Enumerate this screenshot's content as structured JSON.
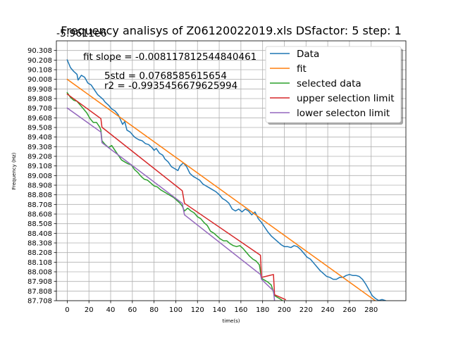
{
  "chart_data": {
    "type": "line",
    "title": "Frequency analisys of Z06120022019.xls DSfactor: 5 step: 1",
    "offset_text": "-5.9611e6",
    "xlabel": "time(s)",
    "ylabel": "Frequency (Hz)",
    "xlim": [
      -10,
      312
    ],
    "ylim": [
      87.708,
      90.408
    ],
    "xticks": [
      "0",
      "20",
      "40",
      "60",
      "80",
      "100",
      "120",
      "140",
      "160",
      "180",
      "200",
      "220",
      "240",
      "260",
      "280"
    ],
    "yticks": [
      "87.708",
      "87.808",
      "87.908",
      "88.008",
      "88.108",
      "88.208",
      "88.308",
      "88.408",
      "88.508",
      "88.608",
      "88.708",
      "88.808",
      "88.908",
      "89.008",
      "89.108",
      "89.208",
      "89.308",
      "89.408",
      "89.508",
      "89.608",
      "89.708",
      "89.808",
      "89.908",
      "90.008",
      "90.108",
      "90.208",
      "90.308"
    ],
    "grid": true,
    "legend_position": "upper right",
    "annotations": [
      "fit slope = -0.008117812544840461",
      "5std = 0.0768585615654",
      "r2 = -0.9935456679625994"
    ],
    "series": [
      {
        "name": "Data",
        "color": "#1f77b4",
        "points": [
          [
            0,
            90.21
          ],
          [
            3,
            90.13
          ],
          [
            6,
            90.09
          ],
          [
            9,
            90.06
          ],
          [
            10,
            90.0
          ],
          [
            13,
            90.05
          ],
          [
            16,
            90.03
          ],
          [
            19,
            89.97
          ],
          [
            22,
            89.95
          ],
          [
            25,
            89.9
          ],
          [
            28,
            89.85
          ],
          [
            31,
            89.82
          ],
          [
            33,
            89.8
          ],
          [
            35,
            89.77
          ],
          [
            38,
            89.74
          ],
          [
            41,
            89.7
          ],
          [
            44,
            89.68
          ],
          [
            47,
            89.64
          ],
          [
            49,
            89.59
          ],
          [
            51,
            89.54
          ],
          [
            53,
            89.57
          ],
          [
            55,
            89.48
          ],
          [
            58,
            89.46
          ],
          [
            61,
            89.42
          ],
          [
            63,
            89.4
          ],
          [
            66,
            89.38
          ],
          [
            69,
            89.37
          ],
          [
            72,
            89.34
          ],
          [
            75,
            89.33
          ],
          [
            78,
            89.3
          ],
          [
            80,
            89.27
          ],
          [
            82,
            89.29
          ],
          [
            85,
            89.24
          ],
          [
            88,
            89.22
          ],
          [
            90,
            89.18
          ],
          [
            93,
            89.15
          ],
          [
            96,
            89.1
          ],
          [
            99,
            89.08
          ],
          [
            102,
            89.06
          ],
          [
            104,
            89.11
          ],
          [
            107,
            89.14
          ],
          [
            110,
            89.1
          ],
          [
            113,
            89.03
          ],
          [
            116,
            89.0
          ],
          [
            119,
            88.98
          ],
          [
            122,
            88.96
          ],
          [
            125,
            88.92
          ],
          [
            128,
            88.9
          ],
          [
            131,
            88.88
          ],
          [
            134,
            88.86
          ],
          [
            137,
            88.84
          ],
          [
            140,
            88.81
          ],
          [
            143,
            88.77
          ],
          [
            146,
            88.75
          ],
          [
            149,
            88.72
          ],
          [
            152,
            88.66
          ],
          [
            155,
            88.64
          ],
          [
            158,
            88.66
          ],
          [
            161,
            88.63
          ],
          [
            164,
            88.66
          ],
          [
            167,
            88.64
          ],
          [
            170,
            88.6
          ],
          [
            173,
            88.63
          ],
          [
            176,
            88.56
          ],
          [
            179,
            88.52
          ],
          [
            182,
            88.47
          ],
          [
            185,
            88.42
          ],
          [
            188,
            88.38
          ],
          [
            191,
            88.35
          ],
          [
            194,
            88.32
          ],
          [
            197,
            88.29
          ],
          [
            200,
            88.27
          ],
          [
            203,
            88.27
          ],
          [
            206,
            88.26
          ],
          [
            209,
            88.28
          ],
          [
            212,
            88.27
          ],
          [
            215,
            88.24
          ],
          [
            218,
            88.2
          ],
          [
            221,
            88.16
          ],
          [
            224,
            88.14
          ],
          [
            227,
            88.1
          ],
          [
            230,
            88.06
          ],
          [
            233,
            88.02
          ],
          [
            236,
            87.99
          ],
          [
            239,
            87.96
          ],
          [
            242,
            87.95
          ],
          [
            245,
            87.93
          ],
          [
            248,
            87.93
          ],
          [
            251,
            87.95
          ],
          [
            254,
            87.95
          ],
          [
            257,
            87.97
          ],
          [
            260,
            87.98
          ],
          [
            263,
            87.97
          ],
          [
            266,
            87.97
          ],
          [
            269,
            87.96
          ],
          [
            272,
            87.93
          ],
          [
            275,
            87.88
          ],
          [
            278,
            87.82
          ],
          [
            281,
            87.76
          ],
          [
            284,
            87.73
          ],
          [
            287,
            87.71
          ],
          [
            290,
            87.72
          ],
          [
            293,
            87.71
          ]
        ]
      },
      {
        "name": "fit",
        "color": "#ff7f0e",
        "points": [
          [
            0,
            90.008
          ],
          [
            285,
            87.698
          ]
        ]
      },
      {
        "name": "selected data",
        "color": "#2ca02c",
        "points": [
          [
            0,
            89.87
          ],
          [
            3,
            89.82
          ],
          [
            6,
            89.79
          ],
          [
            9,
            89.78
          ],
          [
            12,
            89.74
          ],
          [
            15,
            89.7
          ],
          [
            18,
            89.66
          ],
          [
            21,
            89.6
          ],
          [
            24,
            89.56
          ],
          [
            27,
            89.56
          ],
          [
            30,
            89.51
          ],
          [
            31,
            89.48
          ],
          [
            32,
            89.37
          ],
          [
            35,
            89.33
          ],
          [
            38,
            89.3
          ],
          [
            41,
            89.32
          ],
          [
            44,
            89.27
          ],
          [
            47,
            89.22
          ],
          [
            50,
            89.17
          ],
          [
            53,
            89.15
          ],
          [
            56,
            89.13
          ],
          [
            59,
            89.12
          ],
          [
            62,
            89.07
          ],
          [
            65,
            89.04
          ],
          [
            68,
            89.0
          ],
          [
            71,
            88.97
          ],
          [
            74,
            88.96
          ],
          [
            77,
            88.93
          ],
          [
            80,
            88.9
          ],
          [
            83,
            88.89
          ],
          [
            86,
            88.86
          ],
          [
            89,
            88.84
          ],
          [
            92,
            88.82
          ],
          [
            95,
            88.8
          ],
          [
            98,
            88.78
          ],
          [
            101,
            88.75
          ],
          [
            104,
            88.72
          ],
          [
            106,
            88.69
          ],
          [
            108,
            88.64
          ],
          [
            111,
            88.67
          ],
          [
            114,
            88.64
          ],
          [
            117,
            88.62
          ],
          [
            120,
            88.58
          ],
          [
            123,
            88.56
          ],
          [
            126,
            88.52
          ],
          [
            129,
            88.49
          ],
          [
            132,
            88.43
          ],
          [
            135,
            88.41
          ],
          [
            138,
            88.38
          ],
          [
            141,
            88.35
          ],
          [
            144,
            88.33
          ],
          [
            147,
            88.33
          ],
          [
            150,
            88.3
          ],
          [
            153,
            88.28
          ],
          [
            156,
            88.27
          ],
          [
            159,
            88.28
          ],
          [
            162,
            88.25
          ],
          [
            165,
            88.21
          ],
          [
            168,
            88.17
          ],
          [
            171,
            88.14
          ],
          [
            174,
            88.12
          ],
          [
            177,
            88.08
          ],
          [
            179,
            87.94
          ],
          [
            182,
            87.92
          ],
          [
            185,
            87.9
          ],
          [
            188,
            87.87
          ],
          [
            191,
            87.76
          ],
          [
            194,
            87.74
          ],
          [
            197,
            87.72
          ],
          [
            199,
            87.7
          ]
        ]
      },
      {
        "name": "upper selection limit",
        "color": "#d62728",
        "points": [
          [
            0,
            89.855
          ],
          [
            31,
            89.6
          ],
          [
            32,
            89.51
          ],
          [
            106,
            88.85
          ],
          [
            108,
            88.72
          ],
          [
            178,
            88.18
          ],
          [
            179,
            87.95
          ],
          [
            190,
            87.98
          ],
          [
            191,
            87.77
          ],
          [
            201,
            87.72
          ]
        ]
      },
      {
        "name": "lower selecton limit",
        "color": "#9467bd",
        "points": [
          [
            0,
            89.71
          ],
          [
            31,
            89.46
          ],
          [
            32,
            89.35
          ],
          [
            106,
            88.72
          ],
          [
            108,
            88.6
          ],
          [
            178,
            87.98
          ],
          [
            179,
            87.93
          ],
          [
            190,
            87.81
          ],
          [
            191,
            87.708
          ]
        ]
      }
    ]
  }
}
